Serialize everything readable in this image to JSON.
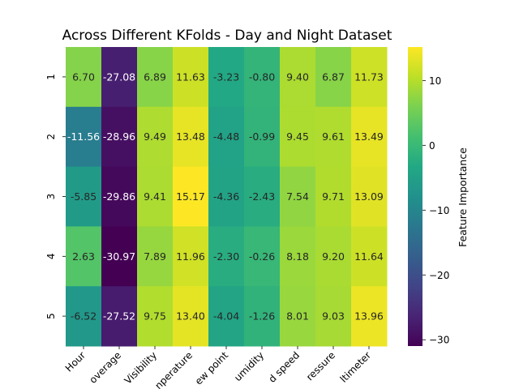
{
  "chart_data": {
    "type": "heatmap",
    "title": "Across Different KFolds - Day and Night Dataset",
    "xlabel": "",
    "ylabel": "",
    "columns": [
      "Hour",
      "Cloud Coverage",
      "Visibility",
      "Temperature",
      "Dew point",
      "Relative Humidity",
      "Wind speed",
      "Pressure",
      "Altimeter"
    ],
    "column_labels_visible": [
      "Hour",
      "overage",
      "Visibility",
      "nperature",
      "ew point",
      "umidity",
      "d speed",
      "ressure",
      "ltimeter"
    ],
    "rows": [
      "1",
      "2",
      "3",
      "4",
      "5"
    ],
    "values": [
      [
        6.7,
        -27.08,
        6.89,
        11.63,
        -3.23,
        -0.8,
        9.4,
        6.87,
        11.73
      ],
      [
        -11.56,
        -28.96,
        9.49,
        13.48,
        -4.48,
        -0.99,
        9.45,
        9.61,
        13.49
      ],
      [
        -5.85,
        -29.86,
        9.41,
        15.17,
        -4.36,
        -2.43,
        7.54,
        9.71,
        13.09
      ],
      [
        2.63,
        -30.97,
        7.89,
        11.96,
        -2.3,
        -0.26,
        8.18,
        9.2,
        11.64
      ],
      [
        -6.52,
        -27.52,
        9.75,
        13.4,
        -4.04,
        -1.26,
        8.01,
        9.03,
        13.96
      ]
    ],
    "value_format": "2 decimals",
    "colormap": "viridis",
    "color_range": [
      -30.97,
      15.17
    ],
    "colorbar": {
      "label": "Feature Importance",
      "ticks": [
        10,
        0,
        -10,
        -20,
        -30
      ],
      "placement": "right"
    },
    "annotations": true,
    "grid": false
  }
}
